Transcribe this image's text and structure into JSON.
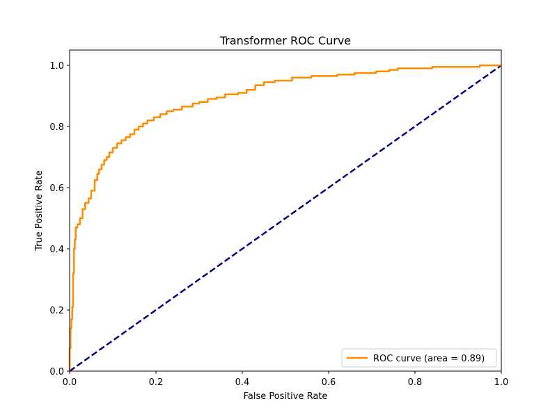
{
  "chart_data": {
    "type": "line",
    "title": "Transformer ROC Curve",
    "xlabel": "False Positive Rate",
    "ylabel": "True Positive Rate",
    "xlim": [
      0.0,
      1.0
    ],
    "ylim": [
      0.0,
      1.05
    ],
    "x_ticks": [
      "0.0",
      "0.2",
      "0.4",
      "0.6",
      "0.8",
      "1.0"
    ],
    "x_tick_values": [
      0.0,
      0.2,
      0.4,
      0.6,
      0.8,
      1.0
    ],
    "y_ticks": [
      "0.0",
      "0.2",
      "0.4",
      "0.6",
      "0.8",
      "1.0"
    ],
    "y_tick_values": [
      0.0,
      0.2,
      0.4,
      0.6,
      0.8,
      1.0
    ],
    "grid": false,
    "legend_position": "lower-right",
    "series": [
      {
        "name": "ROC curve (area = 0.89)",
        "color": "#ff8c00",
        "style": "solid",
        "x": [
          0.0,
          0.0,
          0.002,
          0.002,
          0.004,
          0.004,
          0.006,
          0.006,
          0.008,
          0.008,
          0.01,
          0.01,
          0.012,
          0.012,
          0.014,
          0.014,
          0.018,
          0.018,
          0.024,
          0.024,
          0.03,
          0.03,
          0.036,
          0.036,
          0.044,
          0.044,
          0.05,
          0.05,
          0.058,
          0.058,
          0.064,
          0.064,
          0.068,
          0.068,
          0.074,
          0.074,
          0.08,
          0.08,
          0.086,
          0.086,
          0.092,
          0.092,
          0.1,
          0.1,
          0.11,
          0.11,
          0.12,
          0.12,
          0.13,
          0.13,
          0.14,
          0.14,
          0.15,
          0.15,
          0.16,
          0.16,
          0.17,
          0.17,
          0.18,
          0.18,
          0.195,
          0.195,
          0.21,
          0.21,
          0.225,
          0.225,
          0.24,
          0.24,
          0.26,
          0.26,
          0.285,
          0.285,
          0.3,
          0.3,
          0.32,
          0.32,
          0.34,
          0.34,
          0.36,
          0.36,
          0.39,
          0.39,
          0.41,
          0.41,
          0.43,
          0.43,
          0.45,
          0.45,
          0.475,
          0.475,
          0.515,
          0.515,
          0.56,
          0.56,
          0.62,
          0.62,
          0.66,
          0.66,
          0.71,
          0.71,
          0.74,
          0.74,
          0.76,
          0.76,
          0.84,
          0.84,
          0.95,
          0.95,
          1.0
        ],
        "y": [
          0.0,
          0.075,
          0.075,
          0.14,
          0.14,
          0.17,
          0.17,
          0.21,
          0.21,
          0.32,
          0.32,
          0.4,
          0.4,
          0.43,
          0.43,
          0.47,
          0.47,
          0.48,
          0.48,
          0.5,
          0.5,
          0.53,
          0.53,
          0.55,
          0.55,
          0.565,
          0.565,
          0.59,
          0.59,
          0.625,
          0.625,
          0.645,
          0.645,
          0.66,
          0.66,
          0.675,
          0.675,
          0.69,
          0.69,
          0.7,
          0.7,
          0.715,
          0.715,
          0.73,
          0.73,
          0.745,
          0.745,
          0.755,
          0.755,
          0.765,
          0.765,
          0.775,
          0.775,
          0.79,
          0.79,
          0.8,
          0.8,
          0.81,
          0.81,
          0.82,
          0.82,
          0.83,
          0.83,
          0.84,
          0.84,
          0.85,
          0.85,
          0.855,
          0.855,
          0.865,
          0.865,
          0.875,
          0.875,
          0.88,
          0.88,
          0.89,
          0.89,
          0.895,
          0.895,
          0.905,
          0.905,
          0.91,
          0.91,
          0.92,
          0.92,
          0.935,
          0.935,
          0.945,
          0.945,
          0.95,
          0.95,
          0.96,
          0.96,
          0.965,
          0.965,
          0.97,
          0.97,
          0.975,
          0.975,
          0.98,
          0.98,
          0.985,
          0.985,
          0.99,
          0.99,
          0.995,
          0.995,
          1.0,
          1.0
        ]
      },
      {
        "name": "",
        "color": "#000080",
        "style": "dashed",
        "x": [
          0.0,
          1.0
        ],
        "y": [
          0.0,
          1.0
        ]
      }
    ]
  }
}
